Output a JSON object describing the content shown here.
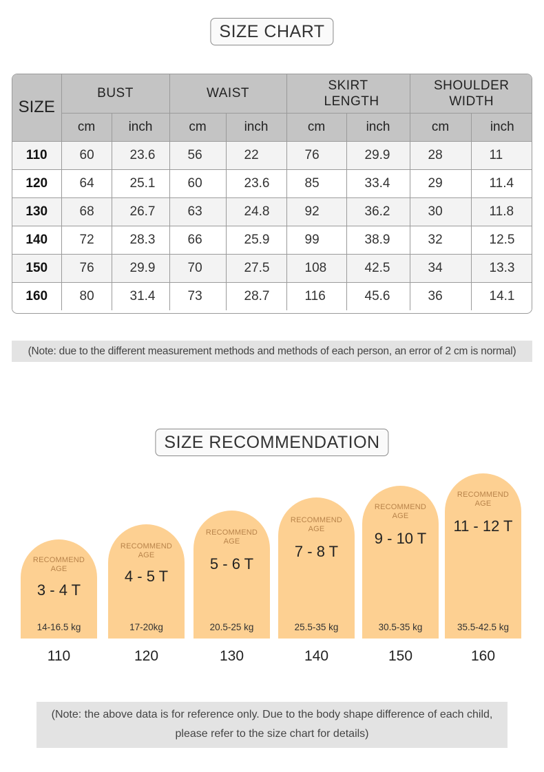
{
  "size_chart": {
    "title": "SIZE CHART",
    "size_header": "SIZE",
    "groups": [
      "BUST",
      "WAIST",
      "SKIRT LENGTH",
      "SHOULDER WIDTH"
    ],
    "units": [
      "cm",
      "inch",
      "cm",
      "inch",
      "cm",
      "inch",
      "cm",
      "inch"
    ],
    "rows": [
      [
        "110",
        "60",
        "23.6",
        "56",
        "22",
        "76",
        "29.9",
        "28",
        "11"
      ],
      [
        "120",
        "64",
        "25.1",
        "60",
        "23.6",
        "85",
        "33.4",
        "29",
        "11.4"
      ],
      [
        "130",
        "68",
        "26.7",
        "63",
        "24.8",
        "92",
        "36.2",
        "30",
        "11.8"
      ],
      [
        "140",
        "72",
        "28.3",
        "66",
        "25.9",
        "99",
        "38.9",
        "32",
        "12.5"
      ],
      [
        "150",
        "76",
        "29.9",
        "70",
        "27.5",
        "108",
        "42.5",
        "34",
        "13.3"
      ],
      [
        "160",
        "80",
        "31.4",
        "73",
        "28.7",
        "116",
        "45.6",
        "36",
        "14.1"
      ]
    ],
    "note": "(Note: due to the different measurement methods and methods of each person, an error of 2 cm is normal)"
  },
  "recommendation": {
    "title": "SIZE RECOMMENDATION",
    "items": [
      {
        "label": "RECOMMEND AGE",
        "age": "3 - 4 T",
        "weight": "14-16.5 kg",
        "size": "110"
      },
      {
        "label": "RECOMMEND AGE",
        "age": "4 - 5 T",
        "weight": "17-20kg",
        "size": "120"
      },
      {
        "label": "RECOMMEND AGE",
        "age": "5 - 6 T",
        "weight": "20.5-25 kg",
        "size": "130"
      },
      {
        "label": "RECOMMEND AGE",
        "age": "7 - 8 T",
        "weight": "25.5-35 kg",
        "size": "140"
      },
      {
        "label": "RECOMMEND AGE",
        "age": "9 - 10 T",
        "weight": "30.5-35 kg",
        "size": "150"
      },
      {
        "label": "RECOMMEND AGE",
        "age": "11 - 12 T",
        "weight": "35.5-42.5 kg",
        "size": "160"
      }
    ],
    "note_line1": "(Note: the above data is for reference only. Due to the body shape difference of each child,",
    "note_line2": "please refer to the size chart for details)"
  },
  "colors": {
    "arch": "#fdd092",
    "header": "#c4c4c4",
    "note_bg": "#e3e3e3"
  }
}
